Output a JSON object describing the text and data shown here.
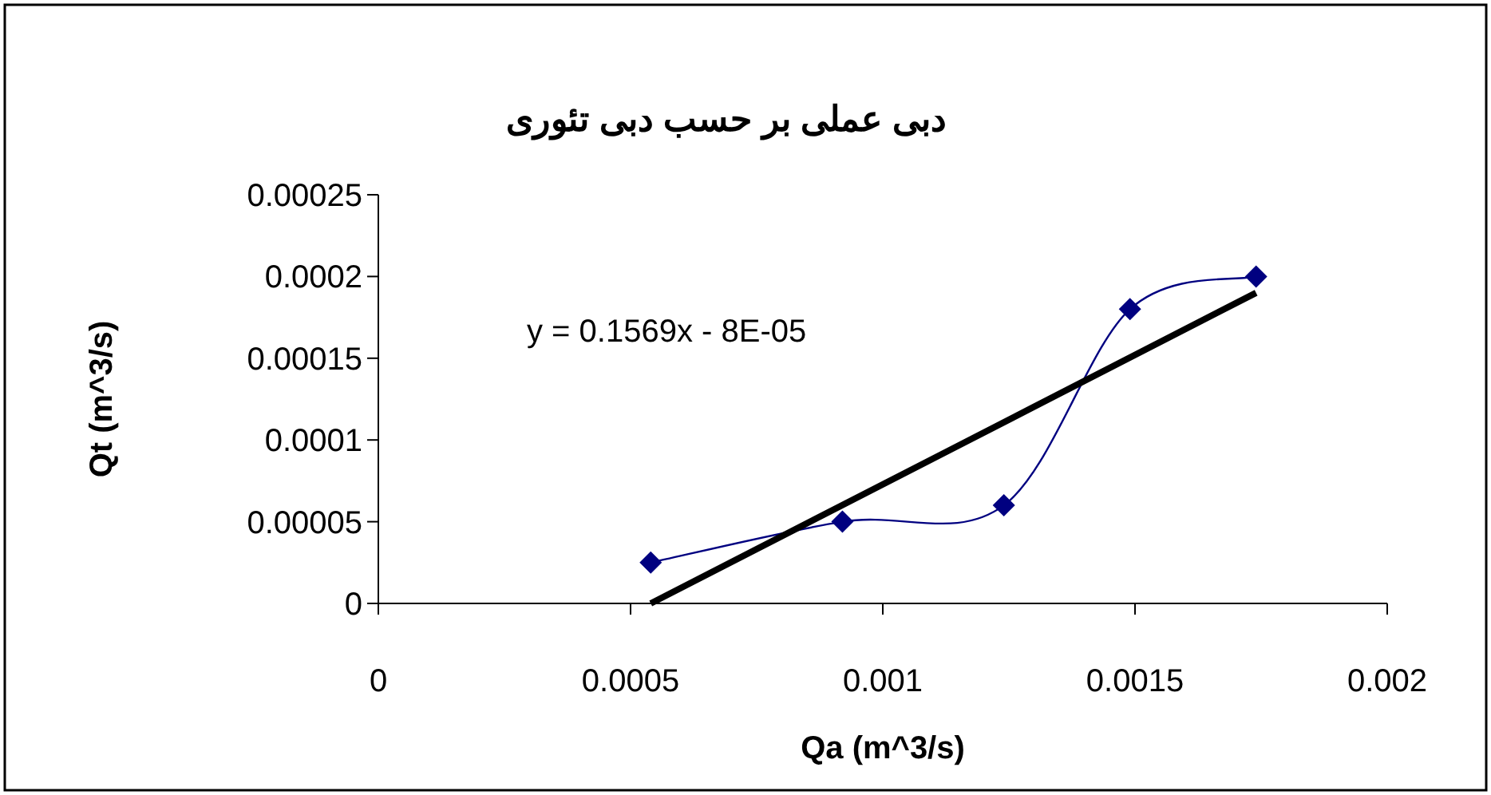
{
  "chart_data": {
    "type": "line",
    "title": "دبی عملی بر حسب دبی تئوری",
    "xlabel": "Qa (m^3/s)",
    "ylabel": "Qt (m^3/s)",
    "xlim": [
      0,
      0.002
    ],
    "xticks": [
      0,
      0.0005,
      0.001,
      0.0015,
      0.002
    ],
    "ylim": [
      0,
      0.00025
    ],
    "yticks": [
      0,
      {
        "value": 5e-05,
        "label": "0.00005"
      },
      0.0001,
      0.00015,
      0.0002,
      0.00025
    ],
    "grid": false,
    "annotations": [
      "y = 0.1569x - 8E-05"
    ],
    "series": [
      {
        "color": "#000080",
        "x": [
          0.00054,
          0.00092,
          0.00124,
          0.00149,
          0.00174
        ],
        "values": [
          2.5e-05,
          5e-05,
          6e-05,
          0.00018,
          0.0002
        ],
        "marker": "diamond",
        "line_style": "solid"
      },
      {
        "color": "#000000",
        "x": [
          0.00054,
          0.00174
        ],
        "values": [
          0,
          0.00019
        ],
        "marker": "none",
        "line_style": "solid"
      }
    ]
  }
}
